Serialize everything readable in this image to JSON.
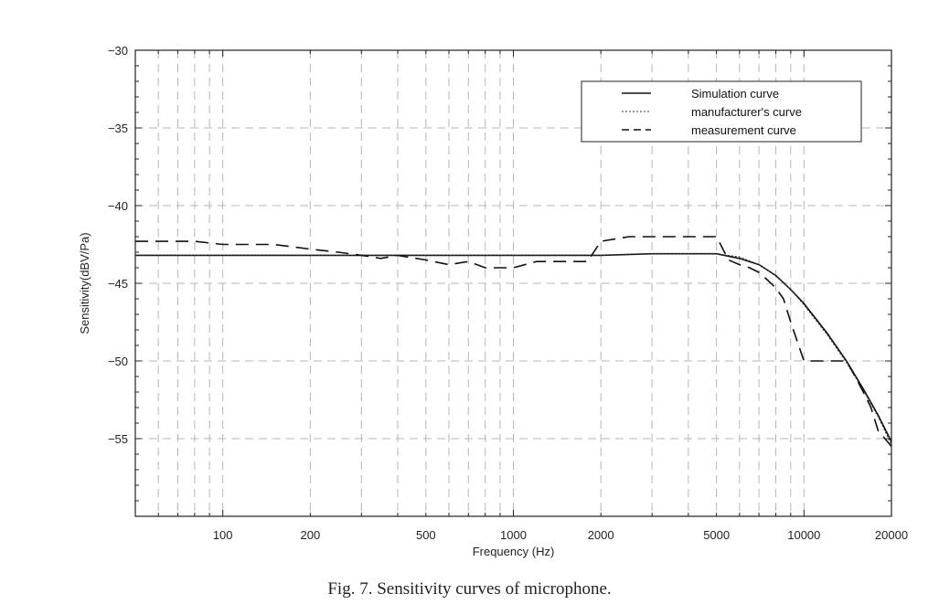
{
  "caption": "Fig. 7. Sensitivity curves of microphone.",
  "chart_data": {
    "type": "line",
    "xlabel": "Frequency (Hz)",
    "ylabel": "Sensitivity(dBV/Pa)",
    "x_scale": "log",
    "xlim": [
      50,
      20000
    ],
    "ylim": [
      -60,
      -30
    ],
    "xticks": [
      100,
      200,
      500,
      1000,
      2000,
      5000,
      10000,
      20000
    ],
    "yticks": [
      -30,
      -35,
      -40,
      -45,
      -50,
      -55
    ],
    "grid": true,
    "legend_position": "top-right",
    "series": [
      {
        "name": "Simulation curve",
        "style": "solid",
        "x": [
          50,
          100,
          200,
          500,
          1000,
          2000,
          3000,
          5000,
          6000,
          7000,
          8000,
          9000,
          10000,
          12000,
          14000,
          16000,
          18000,
          20000
        ],
        "y": [
          -43.2,
          -43.2,
          -43.2,
          -43.2,
          -43.2,
          -43.2,
          -43.1,
          -43.1,
          -43.4,
          -43.8,
          -44.5,
          -45.4,
          -46.3,
          -48.2,
          -50.0,
          -51.8,
          -53.5,
          -55.2
        ]
      },
      {
        "name": "manufacturer's curve",
        "style": "dotted",
        "x": [
          50,
          100,
          200,
          500,
          1000,
          2000,
          3000,
          5000,
          6000,
          7000,
          8000,
          9000,
          10000,
          12000,
          14000,
          16000,
          18000,
          20000
        ],
        "y": [
          -43.2,
          -43.2,
          -43.2,
          -43.2,
          -43.2,
          -43.2,
          -43.1,
          -43.1,
          -43.3,
          -43.8,
          -44.5,
          -45.4,
          -46.4,
          -48.3,
          -50.1,
          -51.9,
          -53.6,
          -55.4
        ]
      },
      {
        "name": "measurement curve",
        "style": "dashed",
        "x": [
          50,
          80,
          100,
          150,
          200,
          250,
          300,
          350,
          400,
          500,
          600,
          700,
          800,
          1000,
          1200,
          1500,
          1800,
          2000,
          2500,
          3000,
          4000,
          5000,
          5500,
          6000,
          6500,
          7000,
          7500,
          8000,
          8500,
          9000,
          10000,
          12000,
          14000,
          15000,
          16000,
          17000,
          18000,
          19000,
          20000
        ],
        "y": [
          -42.3,
          -42.3,
          -42.5,
          -42.5,
          -42.8,
          -43.0,
          -43.2,
          -43.4,
          -43.2,
          -43.5,
          -43.8,
          -43.6,
          -44.0,
          -44.0,
          -43.6,
          -43.6,
          -43.6,
          -42.3,
          -42.0,
          -42.0,
          -42.0,
          -42.0,
          -43.5,
          -43.8,
          -44.0,
          -44.3,
          -44.8,
          -45.3,
          -46.0,
          -47.5,
          -50.0,
          -50.0,
          -50.0,
          -51.0,
          -52.0,
          -53.0,
          -54.5,
          -55.0,
          -55.5
        ]
      }
    ]
  }
}
